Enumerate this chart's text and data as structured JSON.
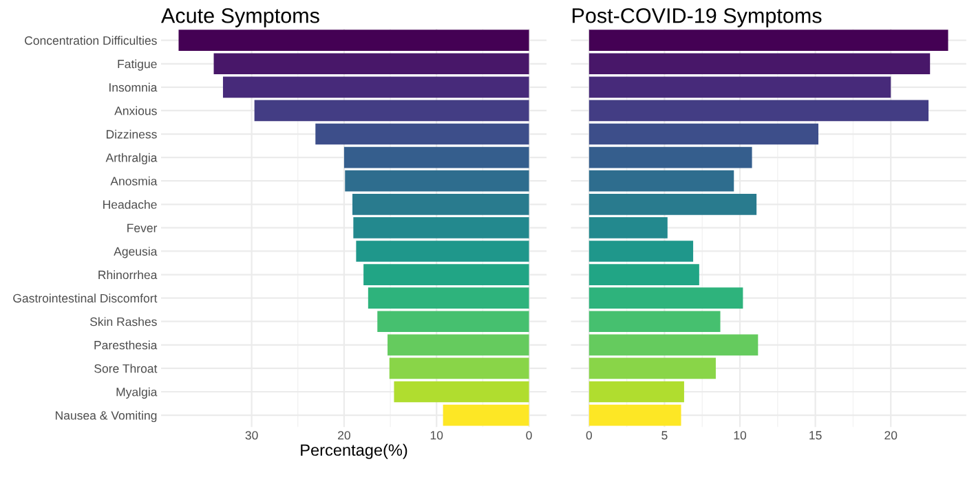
{
  "chart_data": [
    {
      "type": "bar",
      "orientation": "horizontal",
      "title": "Acute Symptoms",
      "xlabel": "Percentage(%)",
      "categories": [
        "Concentration Difficulties",
        "Fatigue",
        "Insomnia",
        "Anxious",
        "Dizziness",
        "Arthralgia",
        "Anosmia",
        "Headache",
        "Fever",
        "Ageusia",
        "Rhinorrhea",
        "Gastrointestinal Discomfort",
        "Skin Rashes",
        "Paresthesia",
        "Sore Throat",
        "Myalgia",
        "Nausea & Vomiting"
      ],
      "values": [
        37.9,
        34.1,
        33.1,
        29.7,
        23.1,
        20.0,
        19.9,
        19.1,
        19.0,
        18.7,
        17.9,
        17.4,
        16.4,
        15.3,
        15.1,
        14.6,
        9.3
      ],
      "colors": [
        "#440154",
        "#481769",
        "#472a7a",
        "#433d84",
        "#3d4e8a",
        "#355e8d",
        "#2e6d8e",
        "#297b8e",
        "#23898e",
        "#1f978b",
        "#21a585",
        "#2eb37c",
        "#46c06f",
        "#65cb5e",
        "#89d548",
        "#b0dd2f",
        "#fde725"
      ],
      "xlim": [
        39.8,
        -1.9
      ],
      "xticks": [
        30,
        20,
        10,
        0
      ],
      "grid": true
    },
    {
      "type": "bar",
      "orientation": "horizontal",
      "title": "Post-COVID-19 Symptoms",
      "categories": [
        null,
        null,
        null,
        null,
        null,
        null,
        null,
        null,
        null,
        null,
        null,
        null,
        null,
        null,
        null,
        null,
        null
      ],
      "values": [
        23.8,
        22.6,
        20.0,
        22.5,
        15.2,
        10.8,
        9.6,
        11.1,
        5.2,
        6.9,
        7.3,
        10.2,
        8.7,
        11.2,
        8.4,
        6.3,
        6.1
      ],
      "colors": [
        "#440154",
        "#481769",
        "#472a7a",
        "#433d84",
        "#3d4e8a",
        "#355e8d",
        "#2e6d8e",
        "#297b8e",
        "#23898e",
        "#1f978b",
        "#21a585",
        "#2eb37c",
        "#46c06f",
        "#65cb5e",
        "#89d548",
        "#b0dd2f",
        "#fde725"
      ],
      "xlim": [
        -1.2,
        25.0
      ],
      "xticks": [
        0,
        5,
        10,
        15,
        20
      ],
      "grid": true,
      "tick_labels": "x"
    }
  ]
}
